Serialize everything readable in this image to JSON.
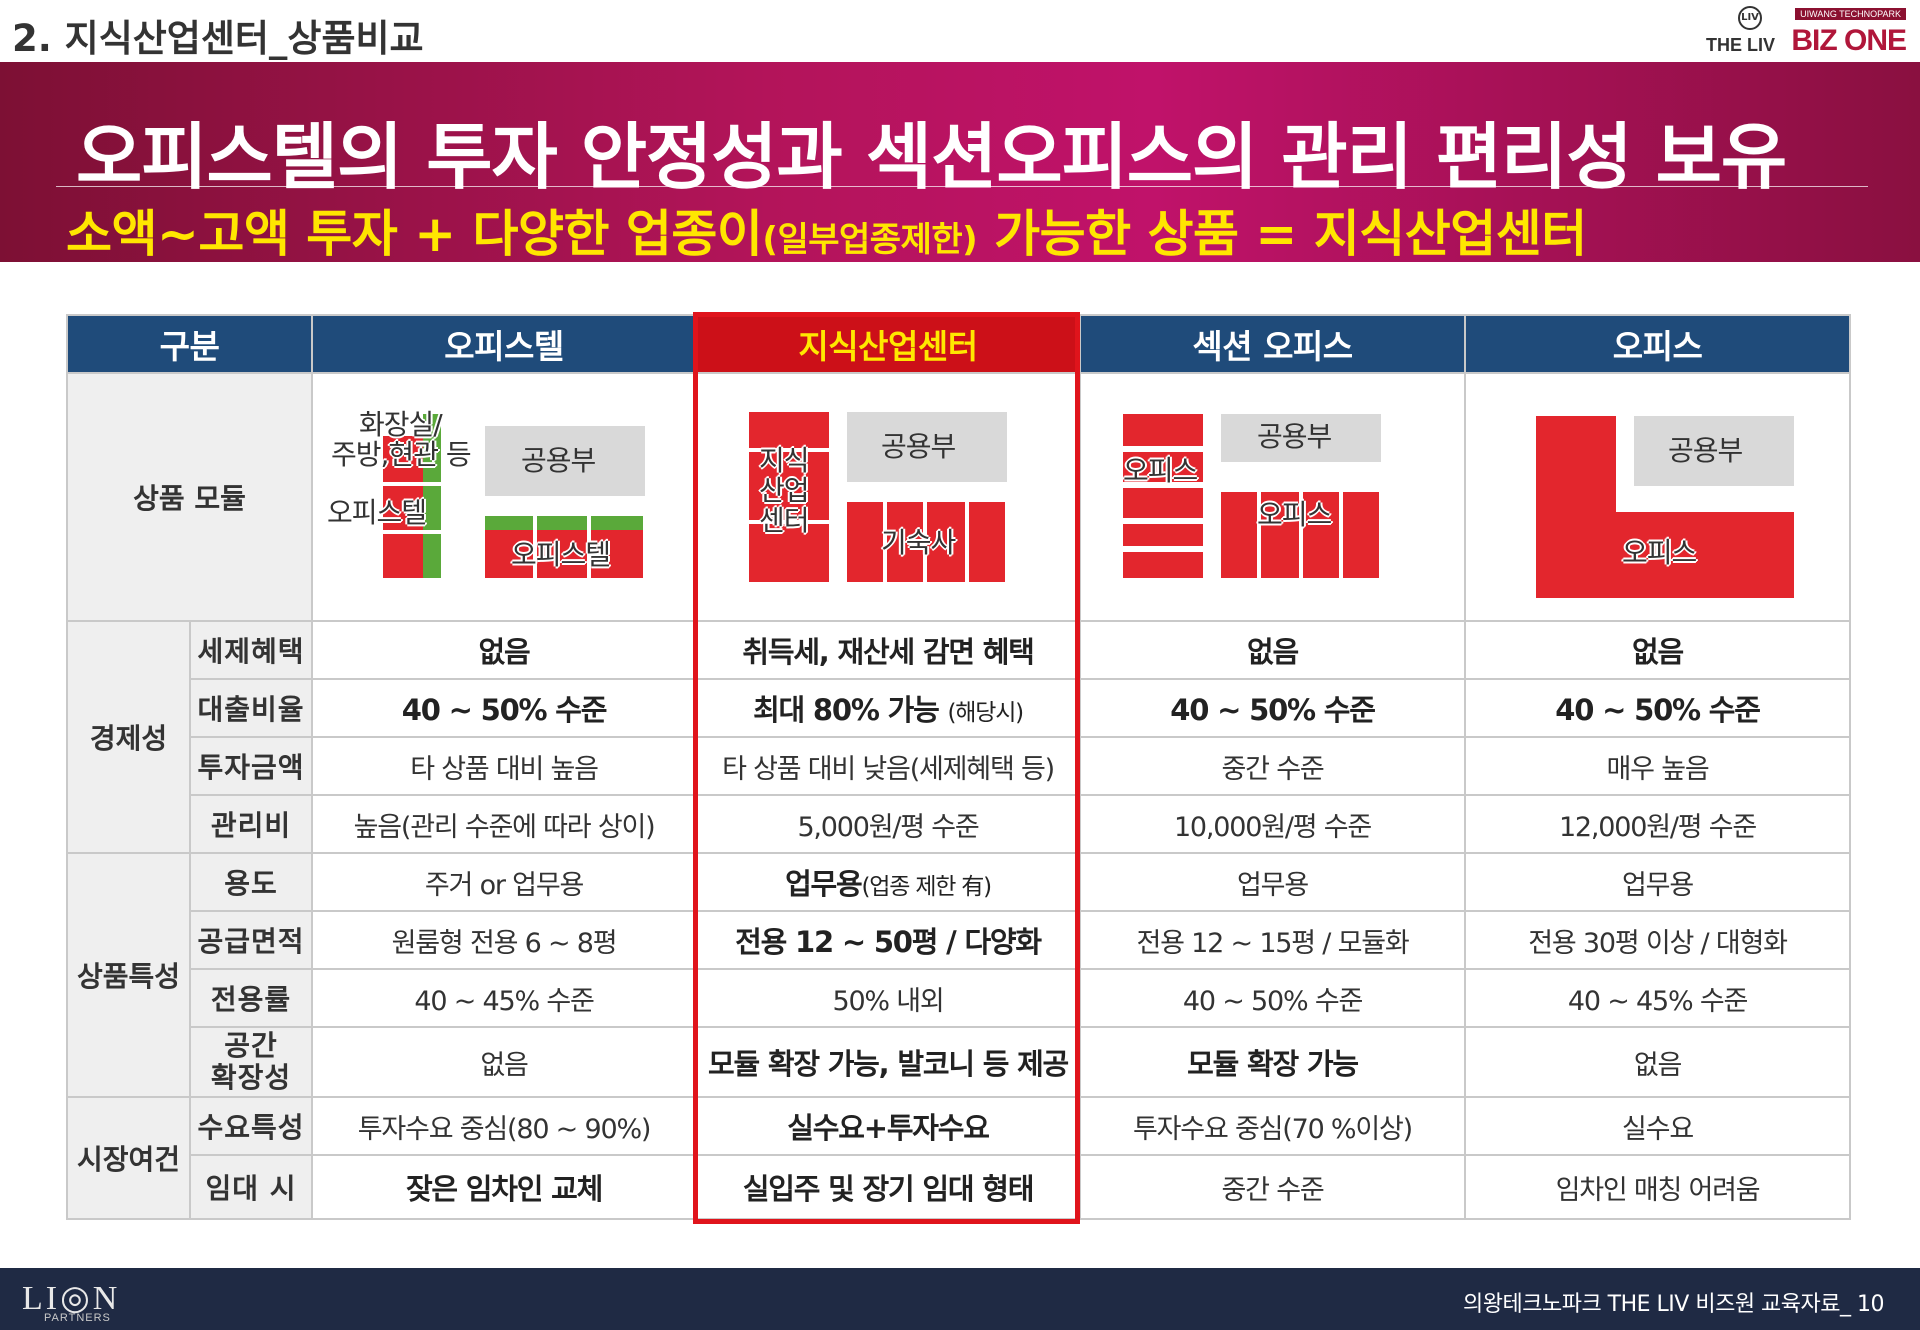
{
  "section_title": "2. 지식산업센터_상품비교",
  "brand": {
    "tag": "UIWANG TECHNOPARK",
    "the_liv": "THE LIV",
    "biz_one": "BIZ ONE",
    "mark": "LIV"
  },
  "banner": {
    "headline": "오피스텔의 투자 안정성과 섹션오피스의 관리 편리성 보유",
    "sub_part1": "소액~고액 투자 + 다양한 업종이",
    "sub_part2": "(일부업종제한)",
    "sub_part3": " 가능한 상품 = 지식산업센터"
  },
  "table": {
    "headers": [
      "구분",
      "오피스텔",
      "지식산업센터",
      "섹션 오피스",
      "오피스"
    ],
    "module_label": "상품 모듈",
    "module_labels": {
      "officetel_toilet": "화장실/",
      "officetel_kitchen": "주방,현관 등",
      "officetel_common": "공용부",
      "officetel_left": "오피스텔",
      "officetel_right": "오피스텔",
      "kic_name_1": "지식",
      "kic_name_2": "산업",
      "kic_name_3": "센터",
      "kic_common": "공용부",
      "kic_dorm": "기숙사",
      "section_common": "공용부",
      "section_left": "오피스",
      "section_right": "오피스",
      "office_common": "공용부",
      "office_main": "오피스"
    },
    "groups": {
      "econ": "경제성",
      "prod": "상품특성",
      "market": "시장여건"
    },
    "rows": [
      {
        "label": "세제혜택",
        "cells": [
          "없음",
          "취득세, 재산세 감면 혜택",
          "없음",
          "없음"
        ]
      },
      {
        "label": "대출비율",
        "cells": [
          "40 ~ 50% 수준",
          "최대 80% 가능",
          "40 ~ 50% 수준",
          "40 ~ 50% 수준"
        ],
        "note": "(해당시)"
      },
      {
        "label": "투자금액",
        "cells": [
          "타 상품 대비 높음",
          "타 상품 대비 낮음(세제혜택 등)",
          "중간 수준",
          "매우 높음"
        ]
      },
      {
        "label": "관리비",
        "cells": [
          "높음(관리 수준에 따라 상이)",
          "5,000원/평 수준",
          "10,000원/평 수준",
          "12,000원/평 수준"
        ]
      },
      {
        "label": "용도",
        "cells": [
          "주거 or 업무용",
          "업무용",
          "업무용",
          "업무용"
        ],
        "note": "(업종 제한 有)"
      },
      {
        "label": "공급면적",
        "cells": [
          "원룸형 전용 6 ~ 8평",
          "전용 12 ~ 50평 / 다양화",
          "전용 12 ~ 15평 / 모듈화",
          "전용 30평 이상 / 대형화"
        ]
      },
      {
        "label": "전용률",
        "cells": [
          "40 ~ 45% 수준",
          "50% 내외",
          "40 ~ 50% 수준",
          "40 ~ 45% 수준"
        ]
      },
      {
        "label1": "공간",
        "label2": "확장성",
        "cells": [
          "없음",
          "모듈 확장 가능, 발코니 등 제공",
          "모듈 확장 가능",
          "없음"
        ]
      },
      {
        "label": "수요특성",
        "cells": [
          "투자수요 중심(80 ~ 90%)",
          "실수요+투자수요",
          "투자수요 중심(70 %이상)",
          "실수요"
        ]
      },
      {
        "label": "임대 시",
        "cells": [
          "잦은 임차인 교체",
          "실입주 및 장기 임대 형태",
          "중간 수준",
          "임차인 매칭 어려움"
        ]
      }
    ]
  },
  "footer": {
    "logo": "LI◎N",
    "logo_sub": "PARTNERS",
    "text": "의왕테크노파크 THE LIV 비즈원 교육자료_  10"
  },
  "colors": {
    "banner": "#b3145a",
    "header_blue": "#1f4b7a",
    "highlight_red": "#e0141c",
    "yellow": "#ffe600",
    "footer": "#1f2a44"
  }
}
